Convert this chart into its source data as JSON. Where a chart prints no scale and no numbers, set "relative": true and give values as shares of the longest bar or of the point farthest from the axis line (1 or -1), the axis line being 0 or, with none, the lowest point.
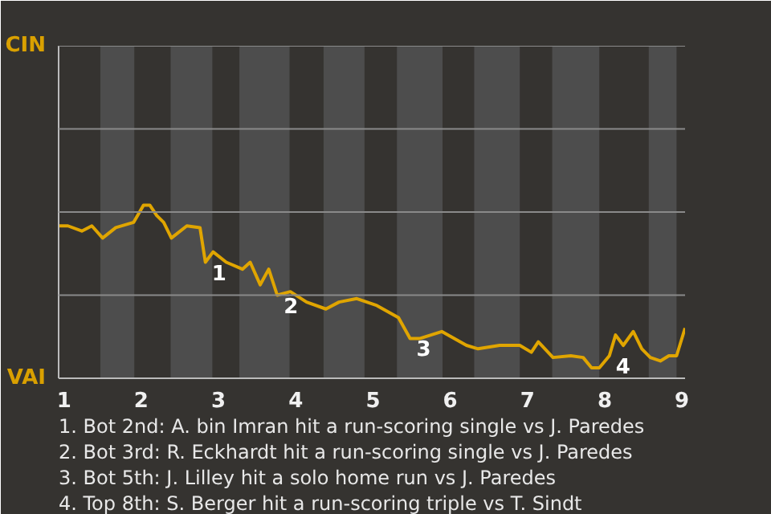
{
  "chart_data": {
    "type": "line",
    "relative": true,
    "x": [
      0.93,
      1.05,
      1.23,
      1.36,
      1.5,
      1.67,
      1.9,
      2.03,
      2.11,
      2.2,
      2.29,
      2.39,
      2.59,
      2.76,
      2.83,
      2.93,
      3.1,
      3.31,
      3.41,
      3.54,
      3.65,
      3.76,
      3.93,
      4.14,
      4.39,
      4.56,
      4.79,
      5.05,
      5.33,
      5.48,
      5.61,
      5.89,
      6.21,
      6.36,
      6.64,
      6.9,
      7.05,
      7.14,
      7.33,
      7.56,
      7.72,
      7.83,
      7.93,
      8.06,
      8.14,
      8.24,
      8.37,
      8.48,
      8.59,
      8.72,
      8.83,
      8.93,
      9.04
    ],
    "series": [
      {
        "color": "#e0a500",
        "values": [
          0.88,
          0.88,
          0.85,
          0.88,
          0.81,
          0.87,
          0.9,
          1,
          1,
          0.94,
          0.9,
          0.81,
          0.88,
          0.87,
          0.67,
          0.73,
          0.67,
          0.63,
          0.67,
          0.54,
          0.63,
          0.48,
          0.5,
          0.44,
          0.4,
          0.44,
          0.46,
          0.42,
          0.35,
          0.23,
          0.23,
          0.27,
          0.19,
          0.17,
          0.19,
          0.19,
          0.15,
          0.21,
          0.12,
          0.13,
          0.12,
          0.06,
          0.06,
          0.13,
          0.25,
          0.19,
          0.27,
          0.17,
          0.12,
          0.1,
          0.13,
          0.13,
          0.29
        ]
      }
    ],
    "xlim": [
      0.93,
      9.04
    ],
    "xticks": [
      1,
      2,
      3,
      4,
      5,
      6,
      7,
      8,
      9
    ],
    "marker": "none",
    "line_style": "solid",
    "ref_lines": [
      {
        "axis": "y",
        "value": 0.48,
        "color": "#8a8a8a"
      },
      {
        "axis": "y",
        "value": 0.96,
        "color": "#8a8a8a"
      },
      {
        "axis": "y",
        "value": 1.44,
        "color": "#8a8a8a"
      },
      {
        "axis": "y",
        "value": 1.92,
        "color": "#8a8a8a"
      }
    ],
    "bands": [
      {
        "axis": "x",
        "from": 1.47,
        "to": 1.91,
        "color": "#4d4d4d"
      },
      {
        "axis": "x",
        "from": 2.38,
        "to": 2.92,
        "color": "#4d4d4d"
      },
      {
        "axis": "x",
        "from": 3.27,
        "to": 3.92,
        "color": "#4d4d4d"
      },
      {
        "axis": "x",
        "from": 4.36,
        "to": 4.89,
        "color": "#4d4d4d"
      },
      {
        "axis": "x",
        "from": 5.31,
        "to": 5.9,
        "color": "#4d4d4d"
      },
      {
        "axis": "x",
        "from": 6.31,
        "to": 6.9,
        "color": "#4d4d4d"
      },
      {
        "axis": "x",
        "from": 7.32,
        "to": 7.93,
        "color": "#4d4d4d"
      },
      {
        "axis": "x",
        "from": 8.57,
        "to": 8.93,
        "color": "#4d4d4d"
      }
    ],
    "annotations": [
      "CIN",
      "VAI",
      {
        "text": "1",
        "x": 2.83,
        "y": 0.67
      },
      {
        "text": "2",
        "x": 3.76,
        "y": 0.48
      },
      {
        "text": "3",
        "x": 5.48,
        "y": 0.23
      },
      {
        "text": "4",
        "x": 8.06,
        "y": 0.13
      },
      "1. Bot 2nd: A. bin Imran hit a run-scoring single vs J. Paredes",
      "2. Bot 3rd: R. Eckhardt hit a run-scoring single vs J. Paredes",
      "3. Bot 5th: J. Lilley hit a solo home run vs J. Paredes",
      "4. Top 8th: S. Berger hit a run-scoring triple vs T. Sindt"
    ]
  }
}
